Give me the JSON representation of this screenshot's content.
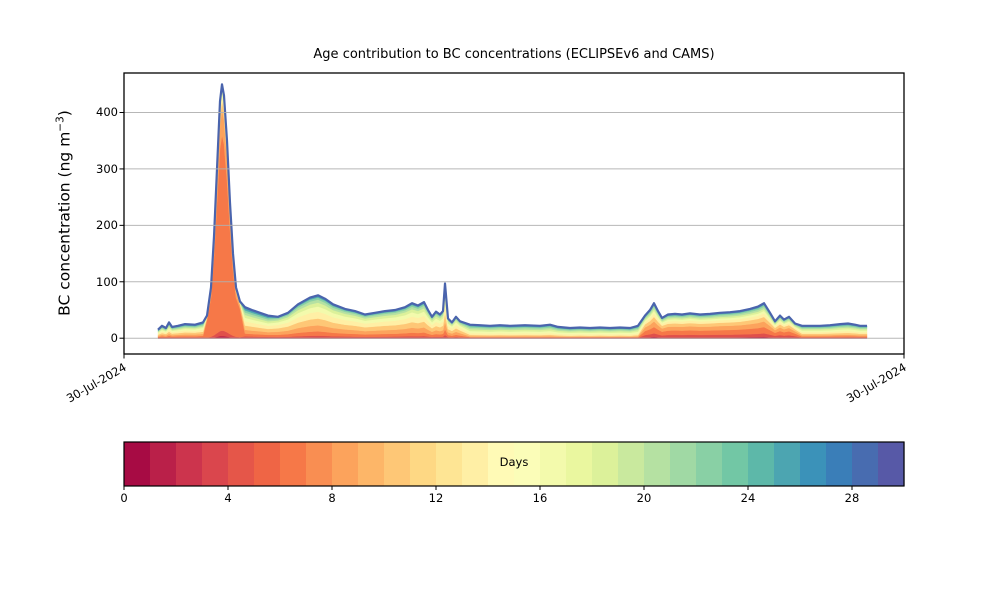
{
  "chart_data": {
    "type": "area",
    "title": "Age contribution to BC concentrations (ECLIPSEv6 and CAMS)",
    "ylabel_prefix": "BC concentration (ng m",
    "ylabel_sup": "−3",
    "ylabel_suffix": ")",
    "xlabel": "",
    "ylim": [
      -28,
      470
    ],
    "yticks": [
      0,
      100,
      200,
      300,
      400
    ],
    "xtick_labels": [
      "30-Jul-2024",
      "30-Jul-2024"
    ],
    "grid": "horizontal",
    "top_line_color": "#4a64ad",
    "baseline_color": "#dd4a4c",
    "bands": [
      {
        "range": "0-1-days",
        "color": "#ae1045"
      },
      {
        "range": "1-3-days",
        "color": "#e0504a"
      },
      {
        "range": "3-6-days",
        "color": "#f67848"
      },
      {
        "range": "6-8-days",
        "color": "#fca35c"
      },
      {
        "range": "8-10-days",
        "color": "#fec776"
      },
      {
        "range": "10-13-days",
        "color": "#ffefa5"
      },
      {
        "range": "13-16-days",
        "color": "#f3faac"
      },
      {
        "range": "16-18-days",
        "color": "#dcf19a"
      },
      {
        "range": "18-21-days",
        "color": "#b5e1a2"
      },
      {
        "range": "21-24-days",
        "color": "#89d0a5"
      },
      {
        "range": "24-27-days",
        "color": "#4ca5b1"
      },
      {
        "range": "27-30-days",
        "color": "#486cb0"
      }
    ],
    "profiles_note": "fraction of total per age band, bottom (youngest) to top (oldest)",
    "profiles": {
      "L": [
        0.02,
        0.04,
        0.09,
        0.12,
        0.14,
        0.14,
        0.11,
        0.09,
        0.08,
        0.07,
        0.06,
        0.04
      ],
      "S": [
        0.008,
        0.022,
        0.77,
        0.1,
        0.035,
        0.02,
        0.015,
        0.01,
        0.008,
        0.006,
        0.004,
        0.002
      ],
      "M": [
        0.02,
        0.04,
        0.1,
        0.14,
        0.16,
        0.16,
        0.12,
        0.09,
        0.07,
        0.05,
        0.03,
        0.02
      ],
      "A": [
        0.01,
        0.02,
        0.05,
        0.07,
        0.1,
        0.13,
        0.15,
        0.14,
        0.12,
        0.1,
        0.07,
        0.04
      ],
      "R": [
        0.04,
        0.1,
        0.18,
        0.16,
        0.13,
        0.1,
        0.07,
        0.06,
        0.06,
        0.05,
        0.03,
        0.02
      ],
      "T": [
        0.02,
        0.04,
        0.08,
        0.1,
        0.12,
        0.13,
        0.13,
        0.11,
        0.09,
        0.08,
        0.06,
        0.04
      ]
    },
    "samples_format": [
      "t (fraction of x-axis span)",
      "total ng m-3",
      "age profile key"
    ],
    "samples": [
      [
        0.0436,
        15,
        "L"
      ],
      [
        0.0487,
        22,
        "L"
      ],
      [
        0.0538,
        18,
        "L"
      ],
      [
        0.0577,
        28,
        "L"
      ],
      [
        0.0615,
        20,
        "L"
      ],
      [
        0.0692,
        22,
        "L"
      ],
      [
        0.0782,
        25,
        "L"
      ],
      [
        0.091,
        24,
        "L"
      ],
      [
        0.1013,
        28,
        "L"
      ],
      [
        0.1064,
        40,
        "S"
      ],
      [
        0.1115,
        90,
        "S"
      ],
      [
        0.1154,
        180,
        "S"
      ],
      [
        0.1192,
        300,
        "S"
      ],
      [
        0.1231,
        420,
        "S"
      ],
      [
        0.1256,
        450,
        "S"
      ],
      [
        0.1282,
        430,
        "S"
      ],
      [
        0.1321,
        350,
        "S"
      ],
      [
        0.1359,
        240,
        "S"
      ],
      [
        0.1397,
        150,
        "S"
      ],
      [
        0.1436,
        90,
        "S"
      ],
      [
        0.1487,
        65,
        "S"
      ],
      [
        0.1551,
        55,
        "L"
      ],
      [
        0.1641,
        50,
        "L"
      ],
      [
        0.1744,
        45,
        "L"
      ],
      [
        0.1846,
        40,
        "L"
      ],
      [
        0.1974,
        38,
        "M"
      ],
      [
        0.2103,
        45,
        "M"
      ],
      [
        0.2231,
        60,
        "M"
      ],
      [
        0.2385,
        72,
        "M"
      ],
      [
        0.2487,
        76,
        "M"
      ],
      [
        0.2577,
        70,
        "M"
      ],
      [
        0.2679,
        60,
        "M"
      ],
      [
        0.2833,
        52,
        "M"
      ],
      [
        0.2962,
        48,
        "M"
      ],
      [
        0.309,
        42,
        "M"
      ],
      [
        0.3218,
        45,
        "M"
      ],
      [
        0.3346,
        48,
        "M"
      ],
      [
        0.3474,
        50,
        "M"
      ],
      [
        0.3603,
        55,
        "M"
      ],
      [
        0.3692,
        62,
        "M"
      ],
      [
        0.3769,
        58,
        "M"
      ],
      [
        0.3846,
        64,
        "M"
      ],
      [
        0.3897,
        50,
        "M"
      ],
      [
        0.3949,
        38,
        "M"
      ],
      [
        0.4,
        47,
        "M"
      ],
      [
        0.4051,
        42,
        "M"
      ],
      [
        0.409,
        48,
        "M"
      ],
      [
        0.4115,
        97,
        "M"
      ],
      [
        0.4154,
        35,
        "M"
      ],
      [
        0.4205,
        28,
        "M"
      ],
      [
        0.4256,
        38,
        "M"
      ],
      [
        0.4308,
        30,
        "M"
      ],
      [
        0.4436,
        24,
        "A"
      ],
      [
        0.4564,
        23,
        "A"
      ],
      [
        0.4692,
        22,
        "A"
      ],
      [
        0.4821,
        23,
        "A"
      ],
      [
        0.4949,
        22,
        "A"
      ],
      [
        0.5141,
        23,
        "A"
      ],
      [
        0.5333,
        22,
        "A"
      ],
      [
        0.5462,
        24,
        "A"
      ],
      [
        0.5564,
        20,
        "A"
      ],
      [
        0.5718,
        18,
        "A"
      ],
      [
        0.5846,
        19,
        "A"
      ],
      [
        0.5974,
        18,
        "A"
      ],
      [
        0.6103,
        19,
        "A"
      ],
      [
        0.6231,
        18,
        "A"
      ],
      [
        0.6359,
        19,
        "A"
      ],
      [
        0.6487,
        18,
        "A"
      ],
      [
        0.659,
        22,
        "A"
      ],
      [
        0.6679,
        40,
        "R"
      ],
      [
        0.6744,
        50,
        "R"
      ],
      [
        0.6795,
        62,
        "R"
      ],
      [
        0.6846,
        48,
        "R"
      ],
      [
        0.6897,
        36,
        "R"
      ],
      [
        0.6974,
        42,
        "R"
      ],
      [
        0.7064,
        43,
        "R"
      ],
      [
        0.7154,
        42,
        "R"
      ],
      [
        0.7256,
        44,
        "R"
      ],
      [
        0.7385,
        42,
        "R"
      ],
      [
        0.7513,
        43,
        "R"
      ],
      [
        0.7641,
        45,
        "R"
      ],
      [
        0.7769,
        46,
        "R"
      ],
      [
        0.7897,
        48,
        "R"
      ],
      [
        0.8026,
        52,
        "R"
      ],
      [
        0.8128,
        56,
        "R"
      ],
      [
        0.8205,
        62,
        "R"
      ],
      [
        0.8282,
        45,
        "R"
      ],
      [
        0.8346,
        30,
        "R"
      ],
      [
        0.841,
        40,
        "R"
      ],
      [
        0.8462,
        33,
        "R"
      ],
      [
        0.8526,
        38,
        "R"
      ],
      [
        0.8603,
        26,
        "R"
      ],
      [
        0.8692,
        22,
        "T"
      ],
      [
        0.8795,
        22,
        "T"
      ],
      [
        0.8923,
        22,
        "T"
      ],
      [
        0.9051,
        23,
        "T"
      ],
      [
        0.9179,
        25,
        "T"
      ],
      [
        0.9282,
        26,
        "T"
      ],
      [
        0.9372,
        24,
        "T"
      ],
      [
        0.9436,
        22,
        "T"
      ],
      [
        0.9526,
        22,
        "T"
      ]
    ],
    "colorbar": {
      "label": "Days",
      "range": [
        0,
        30
      ],
      "ticks": [
        0,
        4,
        8,
        12,
        16,
        20,
        24,
        28
      ],
      "colors": [
        "#a70b44",
        "#ba2049",
        "#cc344d",
        "#da464d",
        "#e55649",
        "#ef6545",
        "#f67848",
        "#f98e52",
        "#fca35c",
        "#fdb668",
        "#fec776",
        "#fed884",
        "#fee594",
        "#ffefa5",
        "#fffab6",
        "#fbfdb8",
        "#f3faac",
        "#eaf79f",
        "#dcf19a",
        "#c9e99e",
        "#b5e1a2",
        "#a0d9a4",
        "#89d0a5",
        "#72c7a5",
        "#5db8a9",
        "#4ca5b1",
        "#3b92b9",
        "#3a7eb8",
        "#486cb0",
        "#5759a7"
      ]
    }
  }
}
